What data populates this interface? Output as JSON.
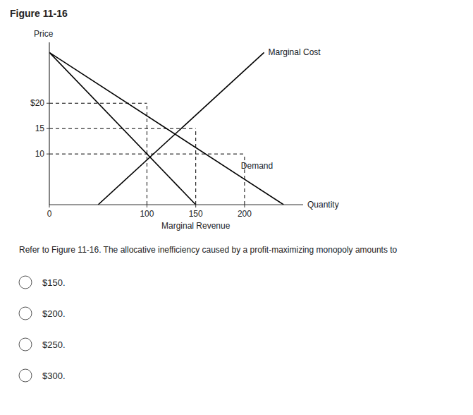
{
  "chart_data": {
    "type": "line",
    "title": "Figure 11-16",
    "x_label": "Quantity",
    "y_label": "Price",
    "xlim": [
      0,
      260
    ],
    "ylim": [
      0,
      32
    ],
    "xticks": [
      0,
      100,
      150,
      200
    ],
    "yticks": [
      10,
      15,
      {
        "value": 20,
        "label": "$20"
      }
    ],
    "grid": false,
    "series": [
      {
        "name": "Demand",
        "x": [
          0,
          240
        ],
        "values": [
          30,
          0
        ],
        "color": "#000000"
      },
      {
        "name": "Marginal Revenue",
        "x": [
          0,
          150
        ],
        "values": [
          30,
          0
        ],
        "color": "#000000"
      },
      {
        "name": "Marginal Cost",
        "x": [
          50,
          220
        ],
        "values": [
          0,
          30
        ],
        "color": "#000000"
      }
    ],
    "guides": {
      "x": [
        100,
        150,
        200
      ],
      "y": [
        20,
        15,
        10
      ],
      "color": "#000000",
      "line_style": "dashed"
    },
    "question": "Refer to Figure 11-16. The allocative inefficiency caused by a profit-maximizing monopoly amounts to",
    "choices": [
      "$150.",
      "$200.",
      "$250.",
      "$300."
    ]
  }
}
